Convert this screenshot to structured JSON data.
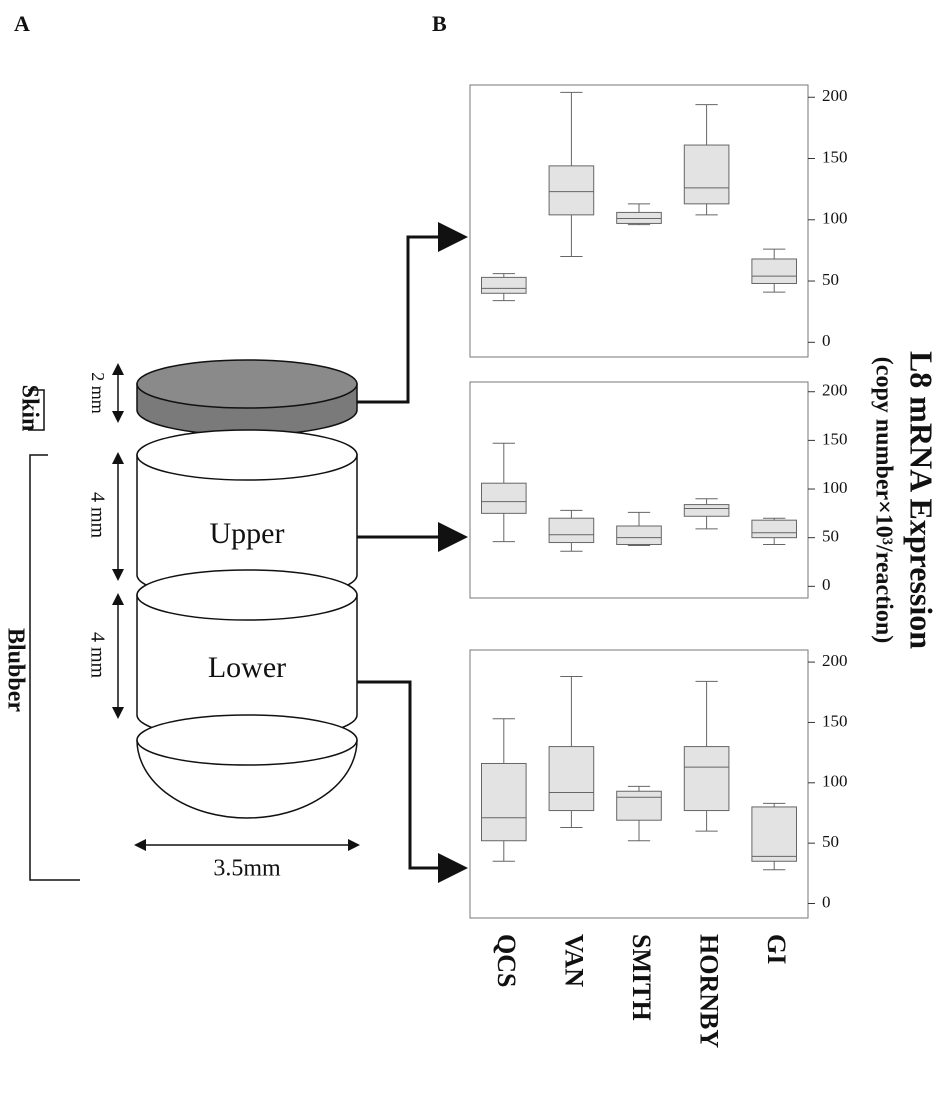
{
  "figure": {
    "panel_a": "A",
    "panel_b": "B",
    "ylabel": "L8 mRNA Expression",
    "ysublabel": "(copy number×10³/reaction)"
  },
  "diagram": {
    "skin": "Skin",
    "blubber": "Blubber",
    "skin_thickness": "2 mm",
    "upper_thickness": "4 mm",
    "lower_thickness": "4 mm",
    "upper": "Upper",
    "lower": "Lower",
    "width": "3.5mm"
  },
  "chart_data": [
    {
      "type": "box",
      "ylim": [
        -12,
        210
      ],
      "yticks": [
        0,
        50,
        100,
        150,
        200
      ],
      "color": "#e3e3e3",
      "boxes": [
        {
          "min": 34,
          "q1": 40,
          "median": 44,
          "q3": 53,
          "max": 56
        },
        {
          "min": 70,
          "q1": 104,
          "median": 123,
          "q3": 144,
          "max": 204
        },
        {
          "min": 96,
          "q1": 97,
          "median": 101,
          "q3": 106,
          "max": 113
        },
        {
          "min": 104,
          "q1": 113,
          "median": 126,
          "q3": 161,
          "max": 194
        },
        {
          "min": 41,
          "q1": 48,
          "median": 54,
          "q3": 68,
          "max": 76
        }
      ]
    },
    {
      "type": "box",
      "ylim": [
        -12,
        210
      ],
      "yticks": [
        0,
        50,
        100,
        150,
        200
      ],
      "color": "#e3e3e3",
      "boxes": [
        {
          "min": 46,
          "q1": 75,
          "median": 87,
          "q3": 106,
          "max": 147
        },
        {
          "min": 36,
          "q1": 45,
          "median": 53,
          "q3": 70,
          "max": 78
        },
        {
          "min": 42,
          "q1": 43,
          "median": 50,
          "q3": 62,
          "max": 76
        },
        {
          "min": 59,
          "q1": 72,
          "median": 80,
          "q3": 84,
          "max": 90
        },
        {
          "min": 43,
          "q1": 50,
          "median": 55,
          "q3": 68,
          "max": 70
        }
      ]
    },
    {
      "type": "box",
      "ylim": [
        -12,
        210
      ],
      "yticks": [
        0,
        50,
        100,
        150,
        200
      ],
      "color": "#e3e3e3",
      "categories": [
        "QCS",
        "VAN",
        "SMITH",
        "HORNBY",
        "GI"
      ],
      "boxes": [
        {
          "min": 35,
          "q1": 52,
          "median": 71,
          "q3": 116,
          "max": 153
        },
        {
          "min": 63,
          "q1": 77,
          "median": 92,
          "q3": 130,
          "max": 188
        },
        {
          "min": 52,
          "q1": 69,
          "median": 88,
          "q3": 93,
          "max": 97
        },
        {
          "min": 60,
          "q1": 77,
          "median": 113,
          "q3": 130,
          "max": 184
        },
        {
          "min": 28,
          "q1": 35,
          "median": 39,
          "q3": 80,
          "max": 83
        }
      ]
    }
  ]
}
